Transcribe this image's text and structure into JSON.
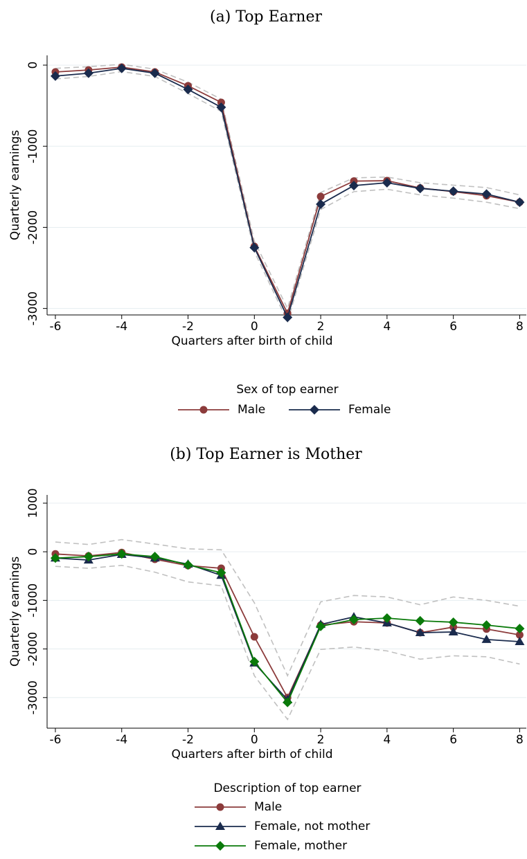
{
  "chart_data": [
    {
      "type": "line",
      "title": "(a) Top Earner",
      "xlabel": "Quarters after birth of child",
      "ylabel": "Quarterly earnings",
      "x": [
        -6,
        -5,
        -4,
        -3,
        -2,
        -1,
        0,
        1,
        2,
        3,
        4,
        5,
        6,
        7,
        8
      ],
      "xlim": [
        -6.25,
        8.2
      ],
      "xticks": [
        -6,
        -4,
        -2,
        0,
        2,
        4,
        6,
        8
      ],
      "ylim": [
        -3080,
        120
      ],
      "yticks": [
        0,
        -1000,
        -2000,
        -3000
      ],
      "grid": true,
      "legend_title": "Sex of top earner",
      "legend_layout": "horizontal",
      "series": [
        {
          "name": "Male",
          "color": "#8c3b3b",
          "marker": "circle",
          "values": [
            -85,
            -60,
            -25,
            -85,
            -255,
            -460,
            -2235,
            -3060,
            -1620,
            -1430,
            -1425,
            -1515,
            -1560,
            -1610,
            -1690
          ]
        },
        {
          "name": "Female",
          "color": "#1a2b4d",
          "marker": "diamond",
          "values": [
            -135,
            -100,
            -40,
            -100,
            -300,
            -520,
            -2250,
            -3110,
            -1715,
            -1485,
            -1450,
            -1520,
            -1555,
            -1590,
            -1690
          ]
        }
      ],
      "bands": [
        {
          "color": "#c0c0c0",
          "upper": [
            -40,
            -20,
            10,
            -50,
            -210,
            -420,
            -2170,
            -3000,
            -1570,
            -1390,
            -1380,
            -1450,
            -1480,
            -1510,
            -1600
          ],
          "lower": [
            -170,
            -140,
            -80,
            -140,
            -350,
            -570,
            -2300,
            -3160,
            -1780,
            -1560,
            -1530,
            -1600,
            -1640,
            -1690,
            -1770
          ]
        }
      ]
    },
    {
      "type": "line",
      "title": "(b) Top Earner is Mother",
      "xlabel": "Quarters after birth of child",
      "ylabel": "Quarterly earnings",
      "x": [
        -6,
        -5,
        -4,
        -3,
        -2,
        -1,
        0,
        1,
        2,
        3,
        4,
        5,
        6,
        7,
        8
      ],
      "xlim": [
        -6.25,
        8.2
      ],
      "xticks": [
        -6,
        -4,
        -2,
        0,
        2,
        4,
        6,
        8
      ],
      "ylim": [
        -3630,
        1170
      ],
      "yticks": [
        1000,
        0,
        -1000,
        -2000,
        -3000
      ],
      "grid": true,
      "legend_title": "Description of top earner",
      "legend_layout": "vertical",
      "series": [
        {
          "name": "Male",
          "color": "#8c3b3b",
          "marker": "circle",
          "values": [
            -45,
            -85,
            -15,
            -155,
            -285,
            -340,
            -1750,
            -3000,
            -1510,
            -1440,
            -1465,
            -1665,
            -1550,
            -1590,
            -1710
          ]
        },
        {
          "name": "Female, not mother",
          "color": "#1a2b4d",
          "marker": "triangle",
          "values": [
            -130,
            -170,
            -55,
            -130,
            -255,
            -485,
            -2290,
            -3045,
            -1495,
            -1340,
            -1465,
            -1665,
            -1650,
            -1805,
            -1850
          ]
        },
        {
          "name": "Female, mother",
          "color": "#0a7a0a",
          "marker": "diamond",
          "values": [
            -130,
            -100,
            -45,
            -100,
            -270,
            -430,
            -2260,
            -3100,
            -1535,
            -1395,
            -1365,
            -1420,
            -1450,
            -1510,
            -1580
          ]
        }
      ],
      "bands": [
        {
          "color": "#c0c0c0",
          "upper": [
            200,
            150,
            250,
            160,
            60,
            40,
            -1050,
            -2550,
            -1030,
            -900,
            -930,
            -1090,
            -930,
            -1000,
            -1120
          ],
          "lower": [
            -300,
            -340,
            -280,
            -420,
            -620,
            -700,
            -2550,
            -3450,
            -2010,
            -1960,
            -2040,
            -2210,
            -2140,
            -2160,
            -2310
          ]
        }
      ]
    }
  ]
}
